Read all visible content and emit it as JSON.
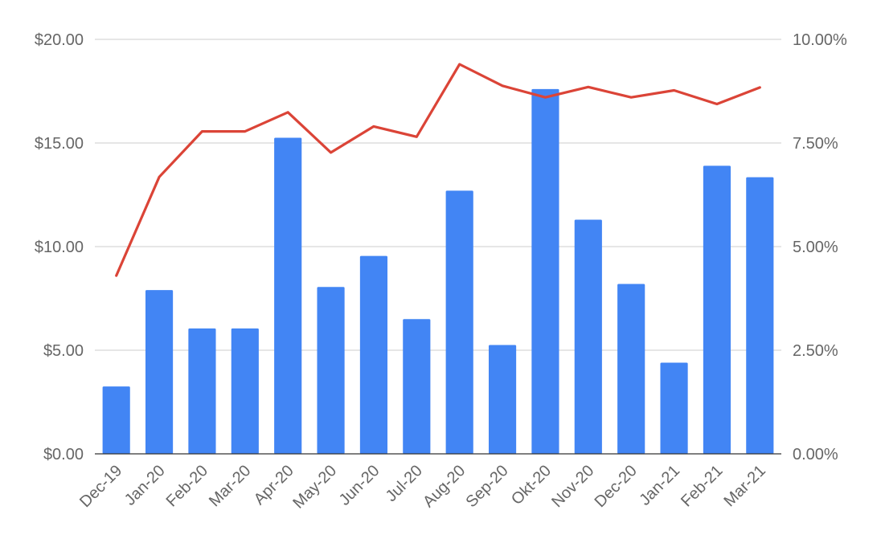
{
  "chart_data": {
    "type": "bar",
    "categories": [
      "Dec-19",
      "Jan-20",
      "Feb-20",
      "Mar-20",
      "Apr-20",
      "May-20",
      "Jun-20",
      "Jul-20",
      "Aug-20",
      "Sep-20",
      "Okt-20",
      "Nov-20",
      "Dec-20",
      "Jan-21",
      "Feb-21",
      "Mar-21"
    ],
    "series": [
      {
        "type": "bar",
        "axis": "left",
        "color": "#4285f4",
        "values": [
          3.25,
          7.9,
          6.05,
          6.05,
          15.25,
          8.05,
          9.55,
          6.5,
          12.7,
          5.25,
          17.6,
          11.3,
          8.2,
          4.4,
          13.9,
          13.35
        ]
      },
      {
        "type": "line",
        "axis": "right",
        "color": "#db4437",
        "values": [
          4.3,
          6.68,
          7.78,
          7.78,
          8.24,
          7.27,
          7.9,
          7.65,
          9.4,
          8.88,
          8.6,
          8.85,
          8.6,
          8.77,
          8.44,
          8.84
        ]
      }
    ],
    "y_left": {
      "ylim": [
        0,
        20
      ],
      "ticks": [
        "$0.00",
        "$5.00",
        "$10.00",
        "$15.00",
        "$20.00"
      ]
    },
    "y_right": {
      "ylim": [
        0,
        10
      ],
      "ticks": [
        "0.00%",
        "2.50%",
        "5.00%",
        "7.50%",
        "10.00%"
      ]
    },
    "grid": true,
    "title": "",
    "xlabel": "",
    "ylabel": ""
  }
}
